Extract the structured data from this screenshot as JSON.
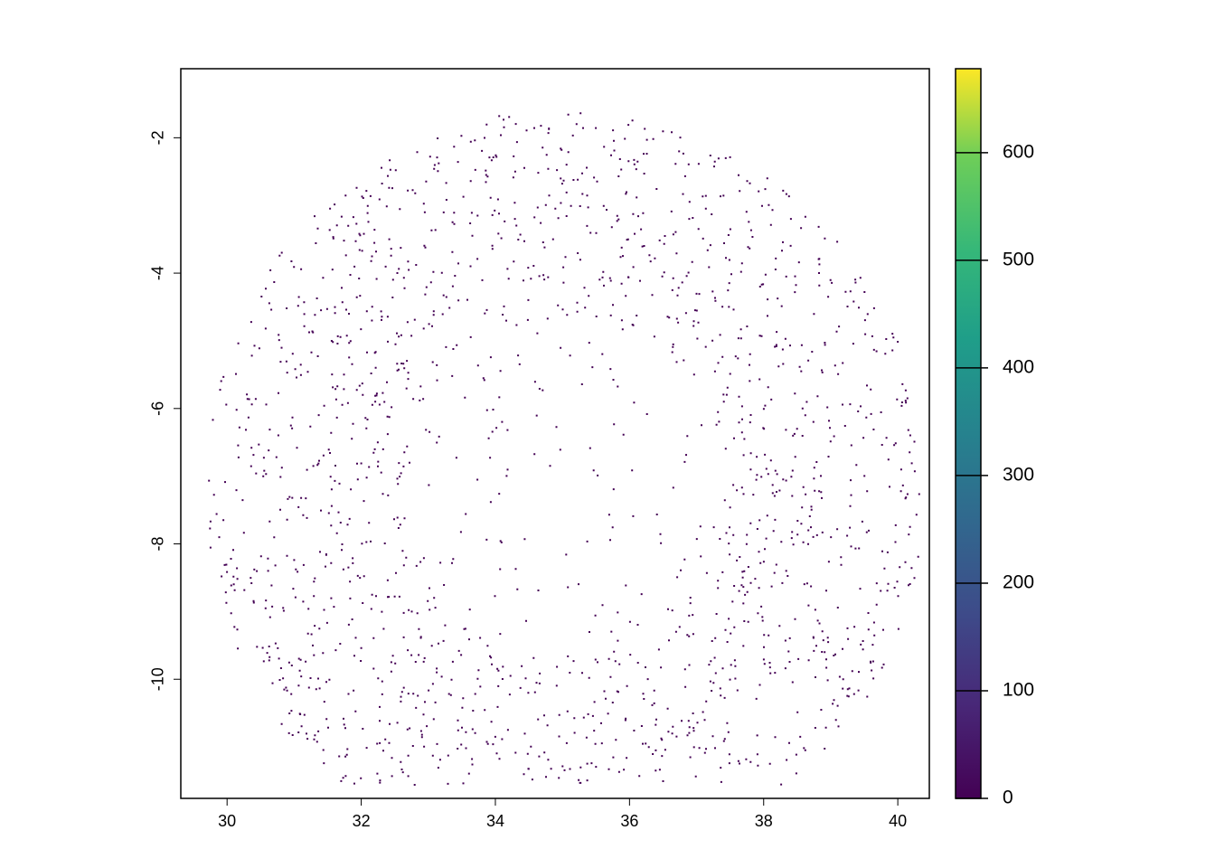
{
  "chart_data": {
    "type": "raster",
    "xlim": [
      29.31,
      40.47
    ],
    "xticks": [
      30,
      32,
      34,
      36,
      38,
      40
    ],
    "ylim": [
      -11.76,
      -0.98
    ],
    "yticks": [
      -2,
      -4,
      -6,
      -8,
      -10
    ],
    "zlim": [
      0,
      678
    ],
    "zticks": [
      0,
      100,
      200,
      300,
      400,
      500,
      600
    ],
    "color": "#440154"
  }
}
